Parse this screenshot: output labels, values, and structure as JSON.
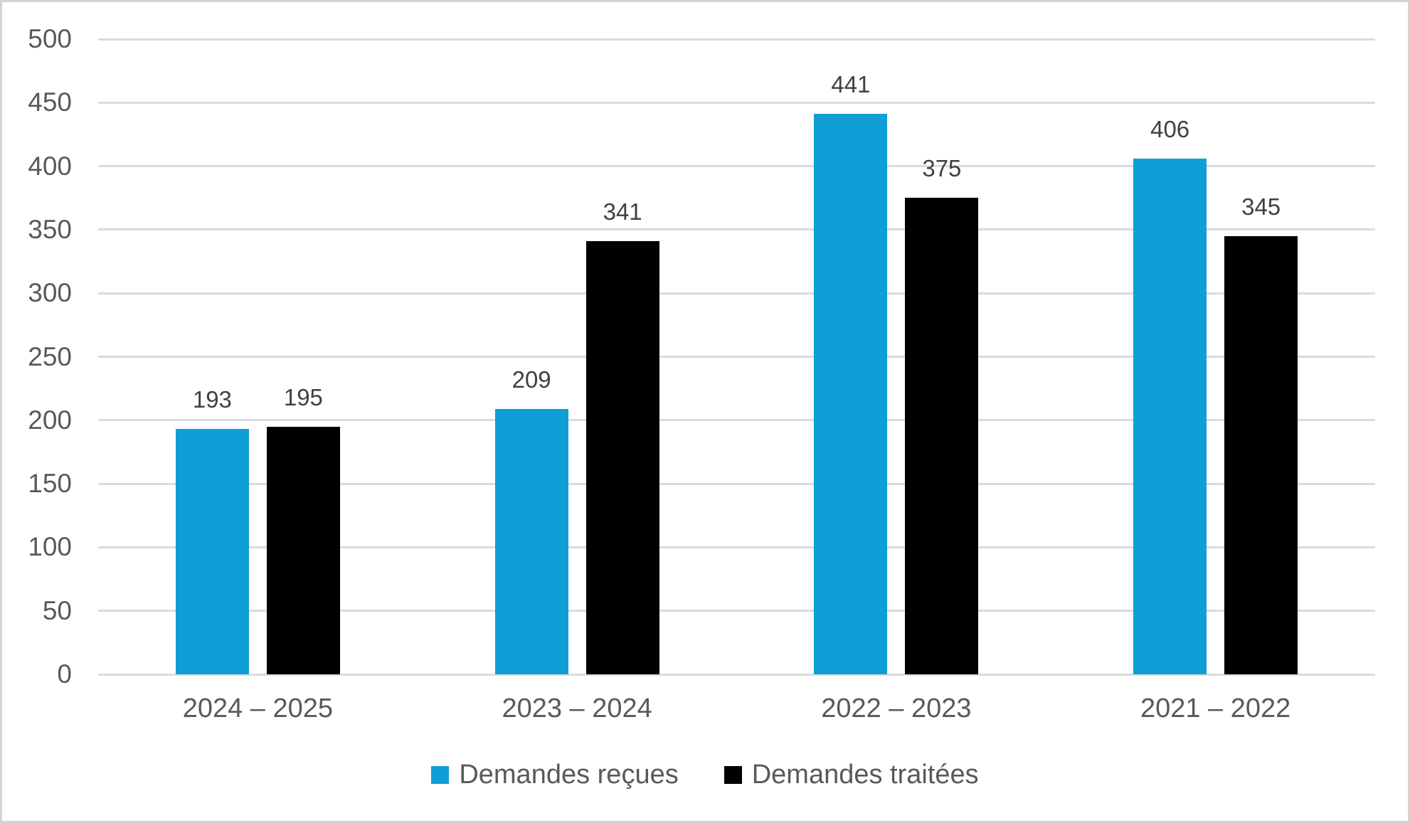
{
  "chart_data": {
    "type": "bar",
    "categories": [
      "2024 – 2025",
      "2023 – 2024",
      "2022 – 2023",
      "2021 – 2022"
    ],
    "series": [
      {
        "name": "Demandes reçues",
        "color": "#0F9ED5",
        "values": [
          193,
          209,
          441,
          406
        ]
      },
      {
        "name": "Demandes traitées",
        "color": "#000000",
        "values": [
          195,
          341,
          375,
          345
        ]
      }
    ],
    "title": "",
    "xlabel": "",
    "ylabel": "",
    "ylim": [
      0,
      500
    ],
    "yticks": [
      0,
      50,
      100,
      150,
      200,
      250,
      300,
      350,
      400,
      450,
      500
    ],
    "grid": "horizontal",
    "legend_position": "bottom"
  },
  "colors": {
    "axis_text": "#595959",
    "data_label_text": "#404040",
    "gridline": "#dbdbdb",
    "frame_border": "#d4d4d4",
    "background": "#ffffff"
  }
}
